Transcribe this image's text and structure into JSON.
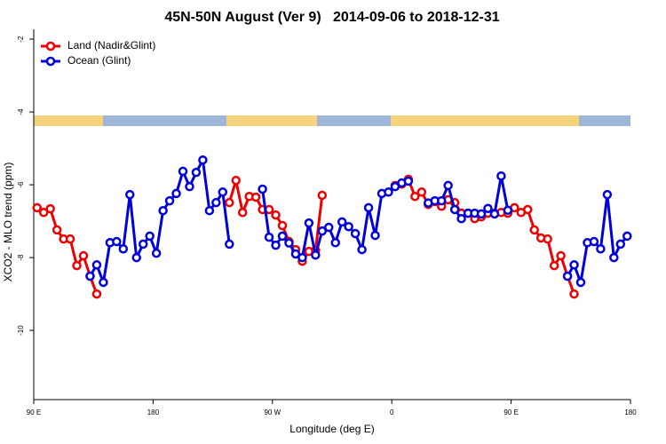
{
  "chart_data": {
    "type": "line",
    "title": "45N-50N August (Ver 9)   2014-09-06 to 2018-12-31",
    "x_label": "Longitude (deg E)",
    "y_label": "XCO2 - MLO trend (ppm)",
    "x": [
      92.5,
      97.5,
      102.5,
      107.5,
      112.5,
      117.5,
      122.5,
      127.5,
      132.5,
      137.5,
      142.5,
      147.5,
      152.5,
      157.5,
      162.5,
      167.5,
      172.5,
      177.5,
      182.5,
      187.5,
      192.5,
      197.5,
      202.5,
      207.5,
      212.5,
      217.5,
      222.5,
      227.5,
      232.5,
      237.5,
      242.5,
      247.5,
      252.5,
      257.5,
      262.5,
      267.5,
      272.5,
      277.5,
      282.5,
      287.5,
      292.5,
      297.5,
      302.5,
      307.5,
      312.5,
      317.5,
      322.5,
      327.5,
      332.5,
      337.5,
      342.5,
      347.5,
      352.5,
      357.5,
      362.5,
      367.5,
      372.5,
      377.5,
      382.5,
      387.5,
      392.5,
      397.5,
      402.5,
      407.5,
      412.5,
      417.5,
      422.5,
      427.5,
      432.5,
      437.5,
      442.5,
      447.5,
      452.5,
      457.5,
      462.5,
      467.5,
      472.5,
      477.5,
      482.5,
      487.5,
      492.5,
      497.5,
      502.5,
      507.5,
      512.5,
      517.5,
      522.5,
      527.5,
      532.5,
      537.5
    ],
    "series": [
      {
        "name": "Land (Nadir&Glint)",
        "color": "#ee0000",
        "values": [
          -6.63,
          -6.76,
          -6.66,
          -7.24,
          -7.49,
          -7.49,
          -8.22,
          -7.95,
          -8.51,
          -9.0,
          null,
          null,
          null,
          null,
          null,
          null,
          null,
          null,
          null,
          null,
          null,
          null,
          null,
          null,
          null,
          null,
          null,
          null,
          null,
          -6.49,
          -5.88,
          -6.76,
          -6.32,
          -6.34,
          -6.68,
          -6.68,
          -6.83,
          -7.12,
          -7.56,
          -7.78,
          -8.1,
          -7.83,
          -7.8,
          -6.29,
          null,
          null,
          null,
          null,
          null,
          null,
          null,
          null,
          null,
          null,
          -6.02,
          -5.98,
          -5.85,
          -6.32,
          -6.2,
          -6.54,
          -6.46,
          -6.59,
          -6.41,
          -6.49,
          -6.78,
          -6.78,
          -6.93,
          -6.88,
          -6.78,
          -6.78,
          -6.76,
          -6.78,
          -6.63,
          -6.76,
          -6.68,
          -7.24,
          -7.46,
          -7.49,
          -8.22,
          -7.95,
          -8.51,
          -9.0,
          null,
          null,
          null,
          null,
          null,
          null,
          null,
          null
        ]
      },
      {
        "name": "Ocean (Glint)",
        "color": "#0000dd",
        "values": [
          null,
          null,
          null,
          null,
          null,
          null,
          null,
          null,
          -8.51,
          -8.2,
          -8.68,
          -7.59,
          -7.56,
          -7.76,
          -6.27,
          -8.0,
          -7.63,
          -7.41,
          -7.88,
          -6.71,
          -6.44,
          -6.24,
          -5.63,
          -6.05,
          -5.66,
          -5.32,
          -6.71,
          -6.49,
          -6.2,
          -7.63,
          null,
          null,
          null,
          null,
          -6.12,
          -7.44,
          -7.66,
          -7.41,
          -7.6,
          -7.9,
          -8.0,
          -7.05,
          -7.93,
          -7.27,
          -7.17,
          -7.59,
          -7.02,
          -7.15,
          -7.34,
          -7.78,
          -6.63,
          -7.39,
          -6.24,
          -6.2,
          -6.05,
          -5.95,
          -5.9,
          null,
          null,
          -6.5,
          -6.44,
          -6.44,
          -6.02,
          -6.68,
          -6.93,
          -6.78,
          -6.78,
          -6.8,
          -6.65,
          -6.8,
          -5.76,
          -6.7,
          null,
          null,
          null,
          null,
          null,
          null,
          null,
          null,
          -8.51,
          -8.2,
          -8.68,
          -7.59,
          -7.56,
          -7.76,
          -6.27,
          -8.0,
          -7.63,
          -7.41
        ]
      }
    ],
    "xlim": [
      90,
      540
    ],
    "xticks": [
      {
        "value": 90,
        "label": "90 E"
      },
      180,
      {
        "value": 270,
        "label": "90 W"
      },
      {
        "value": 360,
        "label": "0"
      },
      {
        "value": 450,
        "label": "90 E"
      },
      {
        "value": 540,
        "label": "180"
      }
    ],
    "ylim": [
      -11.9,
      -1.73
    ],
    "yticks": [
      -2,
      -4,
      -6,
      -8,
      -10
    ],
    "legend": "top-left"
  }
}
